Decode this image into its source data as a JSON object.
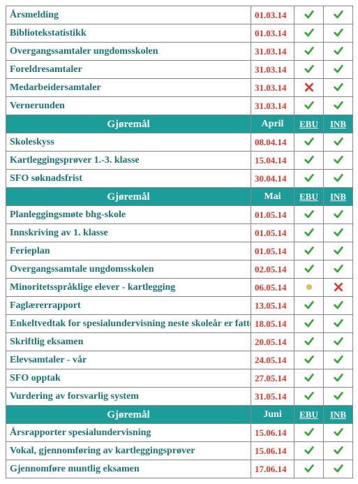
{
  "colors": {
    "teal": "#1d9d99",
    "taskText": "#1d7275",
    "dateText": "#d83a2d",
    "checkGreen": "#3aa537",
    "crossRed": "#d83a2d",
    "dotYellow": "#e4c23a",
    "border": "#888888"
  },
  "headerLabels": {
    "task": "Gjøremål",
    "ebu": "EBU",
    "inb": "INB"
  },
  "sections": [
    {
      "header": null,
      "rows": [
        {
          "task": "Årsmelding",
          "date": "01.03.14",
          "ebu": "check",
          "inb": "check"
        },
        {
          "task": "Bibliotekstatistikk",
          "date": "01.03.14",
          "ebu": "check",
          "inb": "check"
        },
        {
          "task": "Overgangssamtaler ungdomsskolen",
          "date": "31.03.14",
          "ebu": "check",
          "inb": "check"
        },
        {
          "task": "Foreldresamtaler",
          "date": "31.03.14",
          "ebu": "check",
          "inb": "check"
        },
        {
          "task": "Medarbeidersamtaler",
          "date": "31.03.14",
          "ebu": "cross",
          "inb": "check"
        },
        {
          "task": "Vernerunden",
          "date": "31.03.14",
          "ebu": "check",
          "inb": "check"
        }
      ]
    },
    {
      "header": {
        "month": "April"
      },
      "rows": [
        {
          "task": "Skoleskyss",
          "date": "08.04.14",
          "ebu": "check",
          "inb": "check"
        },
        {
          "task": "Kartleggingsprøver 1.-3. klasse",
          "date": "15.04.14",
          "ebu": "check",
          "inb": "check"
        },
        {
          "task": "SFO søknadsfrist",
          "date": "30.04.14",
          "ebu": "check",
          "inb": "check"
        }
      ]
    },
    {
      "header": {
        "month": "Mai"
      },
      "rows": [
        {
          "task": "Planleggingsmøte bhg-skole",
          "date": "01.05.14",
          "ebu": "check",
          "inb": "check"
        },
        {
          "task": "Innskriving av 1. klasse",
          "date": "01.05.14",
          "ebu": "check",
          "inb": "check"
        },
        {
          "task": "Ferieplan",
          "date": "01.05.14",
          "ebu": "check",
          "inb": "check"
        },
        {
          "task": "Overgangssamtale ungdomsskolen",
          "date": "02.05.14",
          "ebu": "check",
          "inb": "check"
        },
        {
          "task": "Minoritetsspråklige elever - kartlegging",
          "date": "06.05.14",
          "ebu": "dot",
          "inb": "cross"
        },
        {
          "task": "Faglærerrapport",
          "date": "13.05.14",
          "ebu": "check",
          "inb": "check"
        },
        {
          "task": "Enkeltvedtak for spesialundervisning neste skoleår er fattet",
          "date": "18.05.14",
          "ebu": "check",
          "inb": "check"
        },
        {
          "task": "Skriftlig eksamen",
          "date": "20.05.14",
          "ebu": "check",
          "inb": "check"
        },
        {
          "task": "Elevsamtaler - vår",
          "date": "24.05.14",
          "ebu": "check",
          "inb": "check"
        },
        {
          "task": "SFO opptak",
          "date": "27.05.14",
          "ebu": "check",
          "inb": "check"
        },
        {
          "task": "Vurdering av forsvarlig system",
          "date": "31.05.14",
          "ebu": "check",
          "inb": "check"
        }
      ]
    },
    {
      "header": {
        "month": "Juni"
      },
      "rows": [
        {
          "task": "Årsrapporter spesialundervisning",
          "date": "15.06.14",
          "ebu": "check",
          "inb": "check"
        },
        {
          "task": "Vokal, gjennomføring av kartleggingsprøver",
          "date": "15.06.14",
          "ebu": "check",
          "inb": "check"
        },
        {
          "task": "Gjennomføre muntlig eksamen",
          "date": "17.06.14",
          "ebu": "check",
          "inb": "check"
        }
      ]
    }
  ]
}
